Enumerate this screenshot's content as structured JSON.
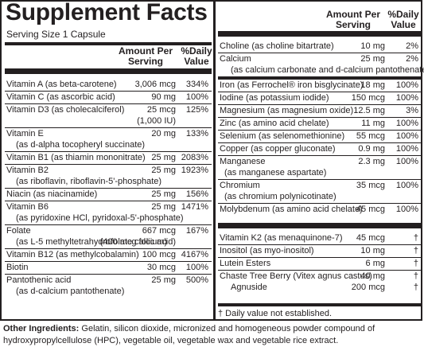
{
  "title": "Supplement Facts",
  "serving_size": "Serving Size 1 Capsule",
  "headers": {
    "amount": "Amount Per\nServing",
    "dv": "%Daily\nValue"
  },
  "left_rows": [
    {
      "name": "Vitamin A (as beta-carotene)",
      "amount": "3,006 mcg",
      "dv": "334%"
    },
    {
      "name": "Vitamin C (as ascorbic acid)",
      "amount": "90 mg",
      "dv": "100%"
    },
    {
      "name": "Vitamin D3 (as cholecalciferol)",
      "amount": "25 mcg",
      "dv": "125%",
      "sub_amount": "(1,000 IU)"
    },
    {
      "name": "Vitamin E",
      "amount": "20 mg",
      "dv": "133%",
      "sub": "(as d-alpha tocopheryl succinate)"
    },
    {
      "name": "Vitamin B1 (as thiamin mononitrate)",
      "amount": "25 mg",
      "dv": "2083%"
    },
    {
      "name": "Vitamin B2",
      "amount": "25 mg",
      "dv": "1923%",
      "sub": "(as riboflavin, riboflavin-5'-phosphate)"
    },
    {
      "name": "Niacin (as niacinamide)",
      "amount": "25 mg",
      "dv": "156%"
    },
    {
      "name": "Vitamin B6",
      "amount": "25 mg",
      "dv": "1471%",
      "sub": "(as pyridoxine HCl, pyridoxal-5'-phosphate)"
    },
    {
      "name": "Folate",
      "amount": "667 mcg",
      "dv": "167%",
      "sub_amount": "(400 mcg folic acid)",
      "sub": "(as L-5 methyltetrahydrofolate calcium)"
    },
    {
      "name": "Vitamin B12 (as methylcobalamin)",
      "amount": "100 mcg",
      "dv": "4167%"
    },
    {
      "name": "Biotin",
      "amount": "30 mcg",
      "dv": "100%"
    },
    {
      "name": "Pantothenic acid",
      "amount": "25 mg",
      "dv": "500%",
      "sub": "(as d-calcium pantothenate)"
    }
  ],
  "right_rows_a": [
    {
      "name": "Choline (as choline bitartrate)",
      "amount": "10 mg",
      "dv": "2%"
    },
    {
      "name": "Calcium",
      "amount": "25 mg",
      "dv": "2%",
      "sub": "(as calcium carbonate and d-calcium pantothenate)"
    }
  ],
  "right_rows_b": [
    {
      "name": "Iron (as Ferrochel® iron bisglycinate)",
      "amount": "18 mg",
      "dv": "100%"
    },
    {
      "name": "Iodine (as potassium iodide)",
      "amount": "150 mcg",
      "dv": "100%"
    },
    {
      "name": "Magnesium (as magnesium oxide)",
      "amount": "12.5 mg",
      "dv": "3%"
    },
    {
      "name": "Zinc (as amino acid chelate)",
      "amount": "11 mg",
      "dv": "100%"
    },
    {
      "name": "Selenium (as selenomethionine)",
      "amount": "55 mcg",
      "dv": "100%"
    },
    {
      "name": "Copper (as copper gluconate)",
      "amount": "0.9 mg",
      "dv": "100%"
    },
    {
      "name": "Manganese",
      "amount": "2.3 mg",
      "dv": "100%",
      "sub": "(as manganese aspartate)"
    },
    {
      "name": "Chromium",
      "amount": "35 mcg",
      "dv": "100%",
      "sub": "(as chromium polynicotinate)"
    },
    {
      "name": "Molybdenum (as amino acid chelate)",
      "amount": "45 mcg",
      "dv": "100%"
    }
  ],
  "right_rows_c": [
    {
      "name": "Vitamin K2 (as menaquinone-7)",
      "amount": "45 mcg",
      "dv": "†"
    },
    {
      "name": "Inositol (as myo-inositol)",
      "amount": "10 mg",
      "dv": "†"
    },
    {
      "name": "Lutein Esters",
      "amount": "6 mg",
      "dv": "†"
    },
    {
      "name": "Chaste Tree Berry (Vitex agnus castus)",
      "amount": "40 mg",
      "dv": "†",
      "sub": "Agnuside",
      "sub_amount": "200 mcg",
      "sub_dv": "†"
    }
  ],
  "footnote": "† Daily value not established.",
  "other_ingredients": {
    "label": "Other Ingredients:",
    "text": "Gelatin, silicon dioxide, micronized and homogeneous powder compound of hydroxypropylcellulose (HPC), vegetable oil, vegetable wax and vegetable rice extract."
  }
}
